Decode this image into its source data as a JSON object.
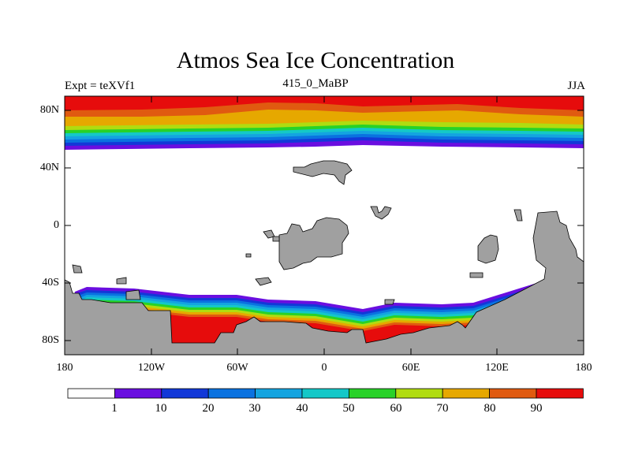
{
  "title": "Atmos Sea Ice Concentration",
  "left_subtitle": "Expt = teXVf1",
  "center_subtitle": "415_0_MaBP",
  "right_subtitle": "JJA",
  "y_ticks": [
    "80N",
    "40N",
    "0",
    "40S",
    "80S"
  ],
  "x_ticks": [
    "180",
    "120W",
    "60W",
    "0",
    "60E",
    "120E",
    "180"
  ],
  "colorbar": {
    "labels": [
      "1",
      "10",
      "20",
      "30",
      "40",
      "50",
      "60",
      "70",
      "80",
      "90"
    ],
    "colors": [
      "#ffffff",
      "#6a0ee0",
      "#1238d8",
      "#0a72e0",
      "#14a4e0",
      "#14c8c8",
      "#28d228",
      "#b0dc10",
      "#e6a800",
      "#e05a10",
      "#e60c0c"
    ]
  },
  "land_color": "#a0a0a0"
}
